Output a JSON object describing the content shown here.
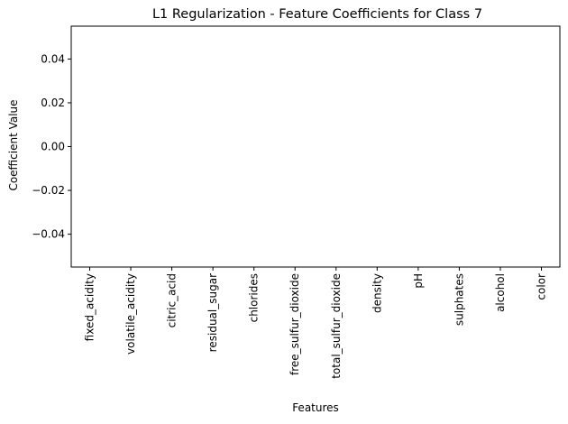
{
  "chart_data": {
    "type": "bar",
    "title": "L1 Regularization - Feature Coefficients for Class 7",
    "xlabel": "Features",
    "ylabel": "Coefficient Value",
    "categories": [
      "fixed_acidity",
      "volatile_acidity",
      "citric_acid",
      "residual_sugar",
      "chlorides",
      "free_sulfur_dioxide",
      "total_sulfur_dioxide",
      "density",
      "pH",
      "sulphates",
      "alcohol",
      "color"
    ],
    "values": [
      0,
      0,
      0,
      0,
      0,
      0,
      0,
      0,
      0,
      0,
      0,
      0
    ],
    "ylim": [
      -0.055,
      0.055
    ],
    "yticks": [
      -0.04,
      -0.02,
      0.0,
      0.02,
      0.04
    ],
    "ytick_labels": [
      "−0.04",
      "−0.02",
      "0.00",
      "0.02",
      "0.04"
    ],
    "grid": false,
    "legend": "none",
    "colors": {
      "bar": "#1f77b4",
      "axes": "#000000",
      "background": "#ffffff"
    }
  }
}
